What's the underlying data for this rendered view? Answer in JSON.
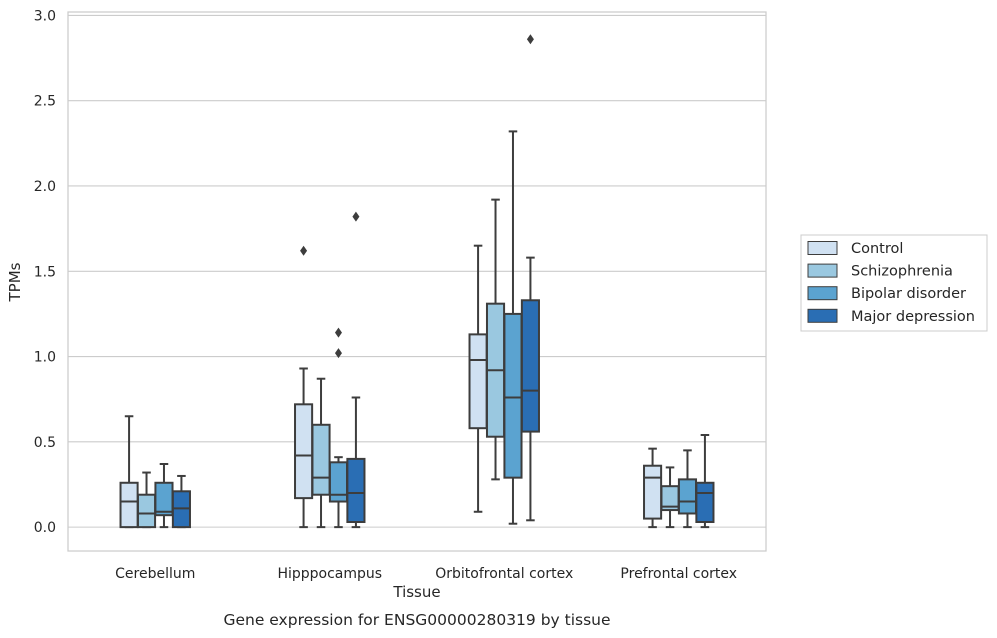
{
  "chart_data": {
    "type": "box",
    "xlabel": "Tissue",
    "ylabel": "TPMs",
    "caption": "Gene expression for ENSG00000280319 by tissue",
    "ylim": [
      -0.14,
      3.02
    ],
    "yticks": [
      "0.0",
      "0.5",
      "1.0",
      "1.5",
      "2.0",
      "2.5",
      "3.0"
    ],
    "grid": "horizontal",
    "legend_position": "right",
    "categories": [
      "Cerebellum",
      "Hipppocampus",
      "Orbitofrontal cortex",
      "Prefrontal cortex"
    ],
    "series": [
      {
        "name": "Control",
        "color": "#d0e1f2",
        "boxes": [
          {
            "whisker_low": 0.0,
            "q1": 0.0,
            "median": 0.15,
            "q3": 0.26,
            "whisker_high": 0.65,
            "outliers": []
          },
          {
            "whisker_low": 0.0,
            "q1": 0.17,
            "median": 0.42,
            "q3": 0.72,
            "whisker_high": 0.93,
            "outliers": [
              1.62
            ]
          },
          {
            "whisker_low": 0.09,
            "q1": 0.58,
            "median": 0.98,
            "q3": 1.13,
            "whisker_high": 1.65,
            "outliers": []
          },
          {
            "whisker_low": 0.0,
            "q1": 0.05,
            "median": 0.29,
            "q3": 0.36,
            "whisker_high": 0.46,
            "outliers": []
          }
        ]
      },
      {
        "name": "Schizophrenia",
        "color": "#9ac8e0",
        "boxes": [
          {
            "whisker_low": 0.0,
            "q1": 0.0,
            "median": 0.08,
            "q3": 0.19,
            "whisker_high": 0.32,
            "outliers": []
          },
          {
            "whisker_low": 0.0,
            "q1": 0.19,
            "median": 0.29,
            "q3": 0.6,
            "whisker_high": 0.87,
            "outliers": []
          },
          {
            "whisker_low": 0.28,
            "q1": 0.53,
            "median": 0.92,
            "q3": 1.31,
            "whisker_high": 1.92,
            "outliers": []
          },
          {
            "whisker_low": 0.0,
            "q1": 0.1,
            "median": 0.12,
            "q3": 0.24,
            "whisker_high": 0.35,
            "outliers": []
          }
        ]
      },
      {
        "name": "Bipolar disorder",
        "color": "#5ba3d0",
        "boxes": [
          {
            "whisker_low": 0.0,
            "q1": 0.07,
            "median": 0.09,
            "q3": 0.26,
            "whisker_high": 0.37,
            "outliers": []
          },
          {
            "whisker_low": 0.0,
            "q1": 0.15,
            "median": 0.19,
            "q3": 0.38,
            "whisker_high": 0.41,
            "outliers": [
              1.02,
              1.14
            ]
          },
          {
            "whisker_low": 0.02,
            "q1": 0.29,
            "median": 0.76,
            "q3": 1.25,
            "whisker_high": 2.32,
            "outliers": []
          },
          {
            "whisker_low": 0.0,
            "q1": 0.08,
            "median": 0.15,
            "q3": 0.28,
            "whisker_high": 0.45,
            "outliers": []
          }
        ]
      },
      {
        "name": "Major depression",
        "color": "#2a6eb4",
        "boxes": [
          {
            "whisker_low": 0.0,
            "q1": 0.0,
            "median": 0.11,
            "q3": 0.21,
            "whisker_high": 0.3,
            "outliers": []
          },
          {
            "whisker_low": 0.0,
            "q1": 0.03,
            "median": 0.2,
            "q3": 0.4,
            "whisker_high": 0.76,
            "outliers": [
              1.82
            ]
          },
          {
            "whisker_low": 0.04,
            "q1": 0.56,
            "median": 0.8,
            "q3": 1.33,
            "whisker_high": 1.58,
            "outliers": [
              2.86
            ]
          },
          {
            "whisker_low": 0.0,
            "q1": 0.03,
            "median": 0.2,
            "q3": 0.26,
            "whisker_high": 0.54,
            "outliers": []
          }
        ]
      }
    ]
  }
}
